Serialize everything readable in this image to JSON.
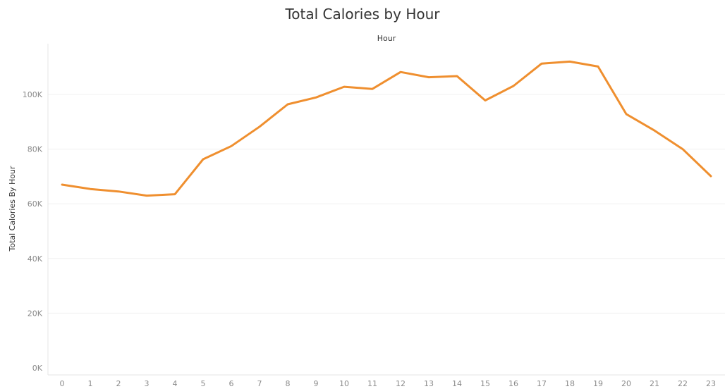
{
  "chart_data": {
    "type": "line",
    "title": "Total Calories by Hour",
    "xlabel": "Hour",
    "ylabel": "Total Calories By Hour",
    "x": [
      "0",
      "1",
      "2",
      "3",
      "4",
      "5",
      "6",
      "7",
      "8",
      "9",
      "10",
      "11",
      "12",
      "13",
      "14",
      "15",
      "16",
      "17",
      "18",
      "19",
      "20",
      "21",
      "22",
      "23"
    ],
    "series": [
      {
        "name": "",
        "color": "#ef8f2f",
        "values": [
          67000,
          65400,
          64500,
          63000,
          63500,
          76300,
          81100,
          88200,
          96400,
          98900,
          102800,
          102000,
          108200,
          106300,
          106700,
          97800,
          103100,
          111300,
          112000,
          110200,
          92800,
          86800,
          80000,
          70100
        ]
      }
    ],
    "yticks": [
      0,
      20000,
      40000,
      60000,
      80000,
      100000
    ],
    "ytick_labels": [
      "0K",
      "20K",
      "40K",
      "60K",
      "80K",
      "100K"
    ],
    "ylim": [
      0,
      117000
    ],
    "grid": true,
    "legend": "none"
  }
}
